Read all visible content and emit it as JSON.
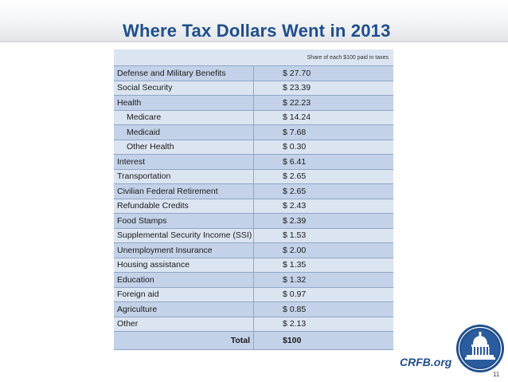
{
  "title": "Where Tax Dollars Went in 2013",
  "table": {
    "header": "Share of each $100 paid in taxes",
    "rows": [
      {
        "label": "Defense and Military Benefits",
        "value": "$ 27.70",
        "indent": false
      },
      {
        "label": "Social Security",
        "value": "$ 23.39",
        "indent": false
      },
      {
        "label": "Health",
        "value": "$ 22.23",
        "indent": false
      },
      {
        "label": "Medicare",
        "value": "$ 14.24",
        "indent": true
      },
      {
        "label": "Medicaid",
        "value": "$ 7.68",
        "indent": true
      },
      {
        "label": "Other Health",
        "value": "$ 0.30",
        "indent": true
      },
      {
        "label": "Interest",
        "value": "$ 6.41",
        "indent": false
      },
      {
        "label": "Transportation",
        "value": "$ 2.65",
        "indent": false
      },
      {
        "label": "Civilian Federal Retirement",
        "value": "$ 2.65",
        "indent": false
      },
      {
        "label": "Refundable Credits",
        "value": "$ 2.43",
        "indent": false
      },
      {
        "label": "Food Stamps",
        "value": "$ 2.39",
        "indent": false
      },
      {
        "label": "Supplemental Security Income (SSI)",
        "value": "$ 1.53",
        "indent": false
      },
      {
        "label": "Unemployment Insurance",
        "value": "$ 2.00",
        "indent": false
      },
      {
        "label": "Housing assistance",
        "value": "$ 1.35",
        "indent": false
      },
      {
        "label": "Education",
        "value": "$ 1.32",
        "indent": false
      },
      {
        "label": "Foreign aid",
        "value": "$ 0.97",
        "indent": false
      },
      {
        "label": "Agriculture",
        "value": "$ 0.85",
        "indent": false
      },
      {
        "label": "Other",
        "value": "$ 2.13",
        "indent": false
      }
    ],
    "total_label": "Total",
    "total_value": "$100"
  },
  "footer": {
    "site": "CRFB.org",
    "page_number": "11",
    "logo_icon": "capitol-dome-seal-icon"
  },
  "colors": {
    "title": "#1f4e8c",
    "row_light": "#dbe4f1",
    "row_dark": "#c3d2e8"
  }
}
